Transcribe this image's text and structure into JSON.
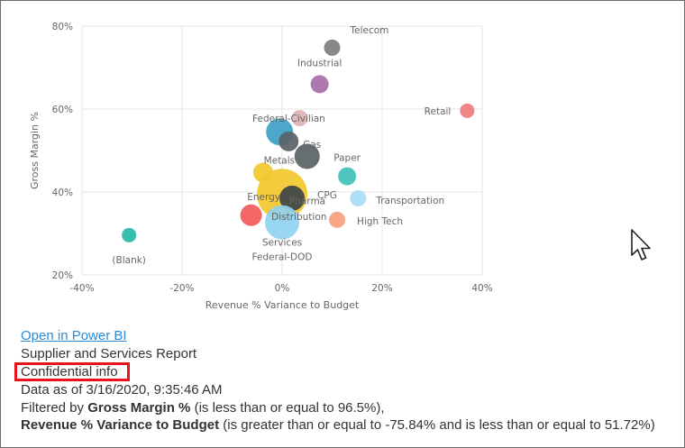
{
  "chart_data": {
    "type": "scatter",
    "xlabel": "Revenue % Variance to Budget",
    "ylabel": "Gross Margin %",
    "xlim": [
      -40,
      40
    ],
    "ylim": [
      20,
      80
    ],
    "xticks": [
      {
        "value": -40,
        "label": "-40%"
      },
      {
        "value": -20,
        "label": "-20%"
      },
      {
        "value": 0,
        "label": "0%"
      },
      {
        "value": 20,
        "label": "20%"
      },
      {
        "value": 40,
        "label": "40%"
      }
    ],
    "yticks": [
      {
        "value": 20,
        "label": "20%"
      },
      {
        "value": 40,
        "label": "40%"
      },
      {
        "value": 60,
        "label": "60%"
      },
      {
        "value": 80,
        "label": "80%"
      }
    ],
    "grid": true,
    "points": [
      {
        "label": "Telecom",
        "x": 10,
        "y": 74.8,
        "r": 9,
        "color": "#7b7f82"
      },
      {
        "label": "Industrial",
        "x": 7.5,
        "y": 66,
        "r": 10,
        "color": "#a66ea8"
      },
      {
        "label": "Retail",
        "x": 37,
        "y": 59.6,
        "r": 8,
        "color": "#f07b7b"
      },
      {
        "label": "Federal-Civilian",
        "x": 3.5,
        "y": 57.8,
        "r": 9,
        "color": "#dcb4b4"
      },
      {
        "label": "",
        "x": -0.5,
        "y": 54.5,
        "r": 15,
        "color": "#3e9fc7"
      },
      {
        "label": "Gas",
        "x": 1.3,
        "y": 52.2,
        "r": 11,
        "color": "#5a6266"
      },
      {
        "label": "",
        "x": 5,
        "y": 48.6,
        "r": 14,
        "color": "#5a6266"
      },
      {
        "label": "Paper",
        "x": 13,
        "y": 43.8,
        "r": 10,
        "color": "#3fc1b8"
      },
      {
        "label": "Metals",
        "x": -3.8,
        "y": 44.7,
        "r": 11,
        "color": "#f2c82c"
      },
      {
        "label": "Pharma",
        "x": 0,
        "y": 39.5,
        "r": 28,
        "color": "#f2c82c"
      },
      {
        "label": "",
        "x": 2,
        "y": 38.5,
        "r": 14,
        "color": "#3d4447"
      },
      {
        "label": "Transportation",
        "x": 15.2,
        "y": 38.5,
        "r": 9,
        "color": "#a8dcf4"
      },
      {
        "label": "Energy",
        "x": -6.2,
        "y": 34.4,
        "r": 12,
        "color": "#f25a5a"
      },
      {
        "label": "Distribution",
        "x": 0.5,
        "y": 34.4,
        "r": 7,
        "color": "#f4a48a"
      },
      {
        "label": "High Tech",
        "x": 11,
        "y": 33.3,
        "r": 9,
        "color": "#f7a07a"
      },
      {
        "label": "Services",
        "x": 0,
        "y": 32.7,
        "r": 19,
        "color": "#8fd3f0"
      },
      {
        "label": "(Blank)",
        "x": -30.6,
        "y": 29.6,
        "r": 8,
        "color": "#26b8a6"
      }
    ],
    "extra_labels": [
      {
        "label": "CPG",
        "x": 9,
        "y": 39.3
      },
      {
        "label": "Federal-DOD",
        "x": 0,
        "y": 24.5
      }
    ]
  },
  "info": {
    "open_link": "Open in Power BI",
    "report_name": "Supplier and Services Report",
    "confidential": "Confidential info",
    "data_as_of": "Data as of 3/16/2020, 9:35:46 AM",
    "filter_prefix": "Filtered by ",
    "filter1_field": "Gross Margin %",
    "filter1_text": " (is less than or equal to 96.5%),",
    "filter2_field": "Revenue % Variance to Budget",
    "filter2_text": " (is greater than or equal to -75.84% and is less than or equal to 51.72%)"
  },
  "cursor_icon": "mouse-pointer-icon"
}
